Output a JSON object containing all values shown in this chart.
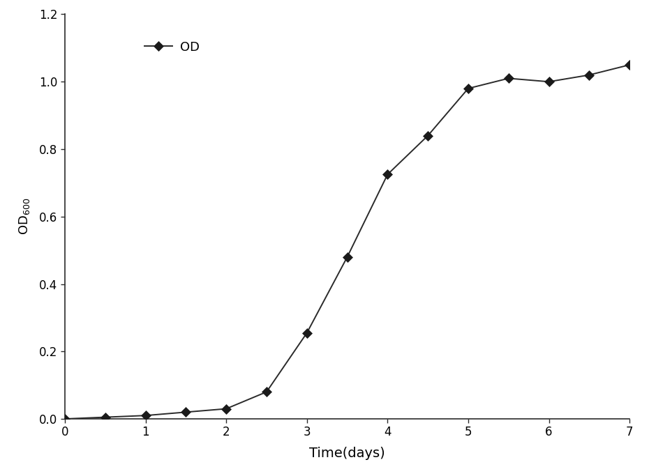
{
  "x": [
    0,
    0.5,
    1.0,
    1.5,
    2.0,
    2.5,
    3.0,
    3.5,
    4.0,
    4.5,
    5.0,
    5.5,
    6.0,
    6.5,
    7.0
  ],
  "y": [
    0.0,
    0.005,
    0.01,
    0.02,
    0.03,
    0.08,
    0.255,
    0.48,
    0.725,
    0.84,
    0.98,
    1.01,
    1.0,
    1.02,
    1.05
  ],
  "line_color": "#2a2a2a",
  "marker": "D",
  "marker_color": "#1a1a1a",
  "marker_size": 7,
  "line_width": 1.4,
  "xlabel": "Time(days)",
  "legend_label": "OD",
  "xlim": [
    0,
    7
  ],
  "ylim": [
    0,
    1.2
  ],
  "xticks": [
    0,
    1,
    2,
    3,
    4,
    5,
    6,
    7
  ],
  "yticks": [
    0,
    0.2,
    0.4,
    0.6,
    0.8,
    1.0,
    1.2
  ],
  "xlabel_fontsize": 14,
  "ylabel_fontsize": 13,
  "tick_fontsize": 12,
  "legend_fontsize": 13,
  "background_color": "#ffffff"
}
